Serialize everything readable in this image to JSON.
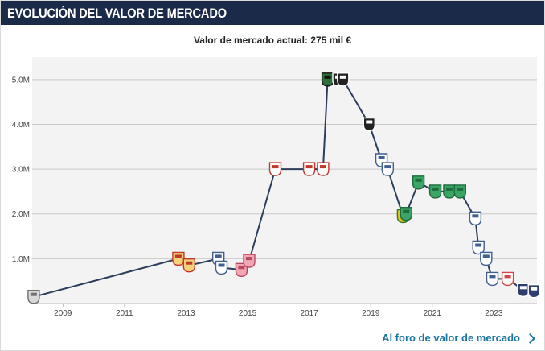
{
  "header": {
    "title": "EVOLUCIÓN DEL VALOR DE MERCADO"
  },
  "subtitle": "Valor de mercado actual: 275 mil €",
  "footer": {
    "link_label": "Al foro de valor de mercado"
  },
  "chart_data": {
    "type": "line",
    "title": "",
    "xlabel": "",
    "ylabel": "",
    "xlim": [
      2008.0,
      2024.4
    ],
    "ylim": [
      0,
      5.5
    ],
    "grid": "horizontal",
    "x_ticks": [
      2009,
      2011,
      2013,
      2015,
      2017,
      2019,
      2021,
      2023
    ],
    "x_tick_labels": [
      "2009",
      "2011",
      "2013",
      "2015",
      "2017",
      "2019",
      "2021",
      "2023"
    ],
    "y_ticks": [
      1,
      2,
      3,
      4,
      5
    ],
    "y_tick_labels": [
      "1.0M",
      "2.0M",
      "3.0M",
      "4.0M",
      "5.0M"
    ],
    "colors": {
      "line": "#2c3e5c",
      "grid": "#c9c9c9",
      "plot_bg": "#f3f3f3"
    },
    "series": [
      {
        "values_unit": "millones de €",
        "points": [
          {
            "x": 2008.05,
            "y": 0.15,
            "club": "gray"
          },
          {
            "x": 2012.75,
            "y": 1.0,
            "club": "yellow-red"
          },
          {
            "x": 2013.1,
            "y": 0.85,
            "club": "yellow-red"
          },
          {
            "x": 2014.05,
            "y": 1.0,
            "club": "white-blue"
          },
          {
            "x": 2014.15,
            "y": 0.8,
            "club": "white-blue"
          },
          {
            "x": 2014.8,
            "y": 0.75,
            "club": "pink"
          },
          {
            "x": 2015.05,
            "y": 0.95,
            "club": "pink"
          },
          {
            "x": 2015.9,
            "y": 3.0,
            "club": "red-black"
          },
          {
            "x": 2017.0,
            "y": 3.0,
            "club": "red-black"
          },
          {
            "x": 2017.45,
            "y": 3.0,
            "club": "red-black"
          },
          {
            "x": 2017.6,
            "y": 5.0,
            "club": "green-black"
          },
          {
            "x": 2017.95,
            "y": 5.0,
            "club": "black-white"
          },
          {
            "x": 2018.1,
            "y": 5.0,
            "club": "black-white"
          },
          {
            "x": 2018.95,
            "y": 4.0,
            "club": "black-white"
          },
          {
            "x": 2019.35,
            "y": 3.2,
            "club": "white-blue"
          },
          {
            "x": 2019.55,
            "y": 3.0,
            "club": "white-blue"
          },
          {
            "x": 2020.05,
            "y": 1.95,
            "club": "yellow-green"
          },
          {
            "x": 2020.15,
            "y": 2.0,
            "club": "green"
          },
          {
            "x": 2020.55,
            "y": 2.7,
            "club": "green"
          },
          {
            "x": 2021.1,
            "y": 2.5,
            "club": "green"
          },
          {
            "x": 2021.55,
            "y": 2.5,
            "club": "green"
          },
          {
            "x": 2021.9,
            "y": 2.5,
            "club": "green"
          },
          {
            "x": 2022.4,
            "y": 1.9,
            "club": "white-blue"
          },
          {
            "x": 2022.5,
            "y": 1.25,
            "club": "white-blue"
          },
          {
            "x": 2022.75,
            "y": 1.0,
            "club": "white-blue"
          },
          {
            "x": 2022.95,
            "y": 0.55,
            "club": "white-blue"
          },
          {
            "x": 2023.45,
            "y": 0.55,
            "club": "red-white"
          },
          {
            "x": 2023.95,
            "y": 0.3,
            "club": "navy"
          },
          {
            "x": 2024.3,
            "y": 0.275,
            "club": "navy"
          }
        ]
      }
    ]
  }
}
